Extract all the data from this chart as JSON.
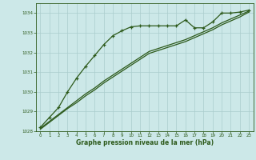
{
  "background_color": "#cce8e8",
  "grid_color": "#aacccc",
  "line_color": "#2d5a1b",
  "xlabel": "Graphe pression niveau de la mer (hPa)",
  "ylim": [
    1028.0,
    1034.5
  ],
  "xlim": [
    -0.5,
    23.5
  ],
  "yticks": [
    1028,
    1029,
    1030,
    1031,
    1032,
    1033,
    1034
  ],
  "xticks": [
    0,
    1,
    2,
    3,
    4,
    5,
    6,
    7,
    8,
    9,
    10,
    11,
    12,
    13,
    14,
    15,
    16,
    17,
    18,
    19,
    20,
    21,
    22,
    23
  ],
  "series_marked": {
    "x": [
      0,
      1,
      2,
      3,
      4,
      5,
      6,
      7,
      8,
      9,
      10,
      11,
      12,
      13,
      14,
      15,
      16,
      17,
      18,
      19,
      20,
      21,
      22,
      23
    ],
    "y": [
      1028.2,
      1028.7,
      1029.2,
      1030.0,
      1030.7,
      1031.3,
      1031.85,
      1032.4,
      1032.85,
      1033.1,
      1033.3,
      1033.35,
      1033.35,
      1033.35,
      1033.35,
      1033.35,
      1033.65,
      1033.25,
      1033.25,
      1033.55,
      1034.0,
      1034.0,
      1034.05,
      1034.15
    ]
  },
  "series_line1": {
    "x": [
      0,
      1,
      2,
      3,
      4,
      5,
      6,
      7,
      8,
      9,
      10,
      11,
      12,
      13,
      14,
      15,
      16,
      17,
      18,
      19,
      20,
      21,
      22,
      23
    ],
    "y": [
      1028.15,
      1028.5,
      1028.85,
      1029.2,
      1029.55,
      1029.9,
      1030.2,
      1030.55,
      1030.85,
      1031.15,
      1031.45,
      1031.75,
      1032.05,
      1032.2,
      1032.35,
      1032.5,
      1032.65,
      1032.85,
      1033.05,
      1033.25,
      1033.5,
      1033.7,
      1033.9,
      1034.1
    ]
  },
  "series_line2": {
    "x": [
      0,
      1,
      2,
      3,
      4,
      5,
      6,
      7,
      8,
      9,
      10,
      11,
      12,
      13,
      14,
      15,
      16,
      17,
      18,
      19,
      20,
      21,
      22,
      23
    ],
    "y": [
      1028.1,
      1028.45,
      1028.8,
      1029.15,
      1029.45,
      1029.8,
      1030.1,
      1030.45,
      1030.75,
      1031.05,
      1031.35,
      1031.65,
      1031.95,
      1032.1,
      1032.25,
      1032.4,
      1032.55,
      1032.75,
      1032.95,
      1033.15,
      1033.4,
      1033.6,
      1033.8,
      1034.05
    ]
  }
}
